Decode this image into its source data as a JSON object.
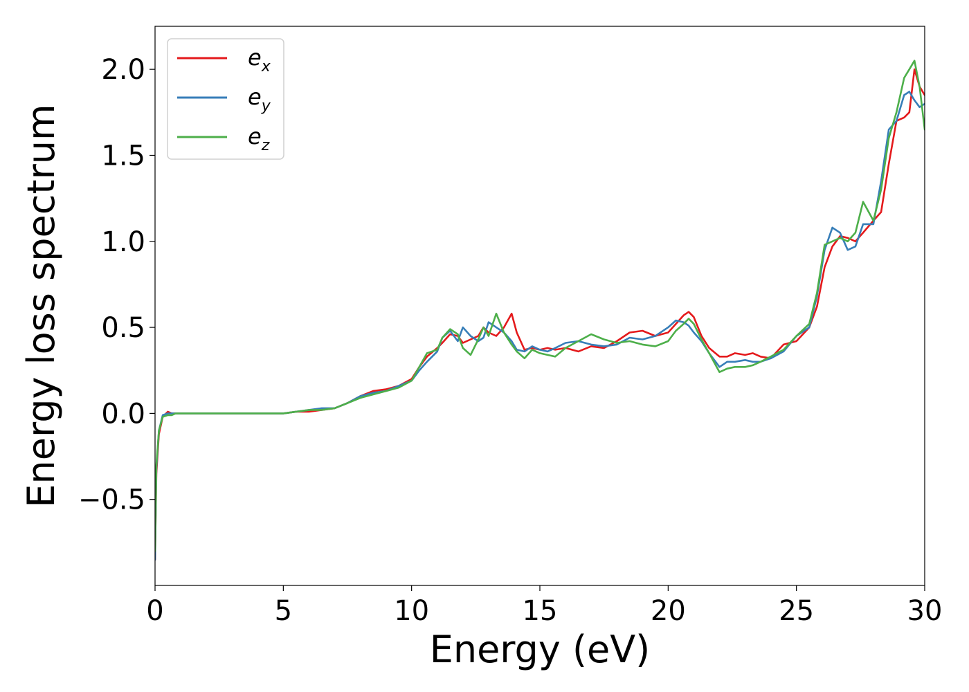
{
  "chart_data": {
    "type": "line",
    "xlabel": "Energy (eV)",
    "ylabel": "Energy loss spectrum",
    "xlim": [
      0,
      30
    ],
    "ylim": [
      -1.0,
      2.25
    ],
    "xticks": [
      0,
      5,
      10,
      15,
      20,
      25,
      30
    ],
    "xtick_labels": [
      "0",
      "5",
      "10",
      "15",
      "20",
      "25",
      "30"
    ],
    "yticks": [
      -0.5,
      0.0,
      0.5,
      1.0,
      1.5,
      2.0
    ],
    "ytick_labels": [
      "−0.5",
      "0.0",
      "0.5",
      "1.0",
      "1.5",
      "2.0"
    ],
    "grid": false,
    "legend_position": "top-left",
    "series": [
      {
        "name": "e_x",
        "legend_base": "e",
        "legend_sub": "x",
        "color": "#e41a1c",
        "x": [
          0.0,
          0.05,
          0.15,
          0.3,
          0.5,
          0.65,
          0.8,
          1.0,
          1.5,
          2.0,
          3.0,
          4.0,
          5.0,
          5.5,
          6.0,
          6.5,
          7.0,
          7.5,
          8.0,
          8.5,
          9.0,
          9.5,
          10.0,
          10.3,
          10.6,
          11.0,
          11.2,
          11.5,
          11.8,
          12.0,
          12.3,
          12.6,
          12.8,
          13.0,
          13.3,
          13.6,
          13.9,
          14.1,
          14.4,
          14.7,
          15.0,
          15.3,
          15.6,
          16.0,
          16.5,
          17.0,
          17.5,
          18.0,
          18.5,
          19.0,
          19.5,
          20.0,
          20.3,
          20.6,
          20.8,
          21.0,
          21.3,
          21.6,
          22.0,
          22.3,
          22.6,
          23.0,
          23.3,
          23.6,
          24.0,
          24.5,
          25.0,
          25.5,
          25.8,
          26.1,
          26.4,
          26.7,
          27.0,
          27.3,
          27.6,
          28.0,
          28.3,
          28.6,
          28.9,
          29.2,
          29.4,
          29.6,
          29.8,
          30.0
        ],
        "y": [
          -0.85,
          -0.35,
          -0.12,
          -0.02,
          0.01,
          0.0,
          0.0,
          0.0,
          0.0,
          0.0,
          0.0,
          0.0,
          0.0,
          0.01,
          0.01,
          0.02,
          0.03,
          0.06,
          0.1,
          0.13,
          0.14,
          0.16,
          0.2,
          0.27,
          0.33,
          0.38,
          0.41,
          0.46,
          0.45,
          0.41,
          0.43,
          0.45,
          0.5,
          0.47,
          0.45,
          0.5,
          0.58,
          0.47,
          0.37,
          0.38,
          0.37,
          0.38,
          0.37,
          0.38,
          0.36,
          0.39,
          0.38,
          0.42,
          0.47,
          0.48,
          0.45,
          0.47,
          0.52,
          0.57,
          0.59,
          0.56,
          0.45,
          0.38,
          0.33,
          0.33,
          0.35,
          0.34,
          0.35,
          0.33,
          0.32,
          0.4,
          0.42,
          0.5,
          0.62,
          0.85,
          0.97,
          1.03,
          1.02,
          1.0,
          1.05,
          1.12,
          1.17,
          1.45,
          1.7,
          1.72,
          1.75,
          2.0,
          1.9,
          1.85
        ]
      },
      {
        "name": "e_y",
        "legend_base": "e",
        "legend_sub": "y",
        "color": "#377eb8",
        "x": [
          0.0,
          0.05,
          0.15,
          0.3,
          0.5,
          0.65,
          0.8,
          1.0,
          1.5,
          2.0,
          3.0,
          4.0,
          5.0,
          5.5,
          6.0,
          6.5,
          7.0,
          7.5,
          8.0,
          8.5,
          9.0,
          9.5,
          10.0,
          10.3,
          10.6,
          11.0,
          11.2,
          11.5,
          11.8,
          12.0,
          12.3,
          12.6,
          12.8,
          13.0,
          13.3,
          13.6,
          13.9,
          14.1,
          14.4,
          14.7,
          15.0,
          15.3,
          15.6,
          16.0,
          16.5,
          17.0,
          17.5,
          18.0,
          18.5,
          19.0,
          19.5,
          20.0,
          20.3,
          20.6,
          20.8,
          21.0,
          21.3,
          21.6,
          22.0,
          22.3,
          22.6,
          23.0,
          23.3,
          23.6,
          24.0,
          24.5,
          25.0,
          25.5,
          25.8,
          26.1,
          26.4,
          26.7,
          27.0,
          27.3,
          27.6,
          28.0,
          28.3,
          28.6,
          28.9,
          29.2,
          29.4,
          29.6,
          29.8,
          30.0
        ],
        "y": [
          -0.85,
          -0.32,
          -0.1,
          -0.01,
          0.0,
          0.0,
          0.0,
          0.0,
          0.0,
          0.0,
          0.0,
          0.0,
          0.0,
          0.01,
          0.02,
          0.03,
          0.03,
          0.06,
          0.1,
          0.12,
          0.13,
          0.16,
          0.19,
          0.25,
          0.3,
          0.36,
          0.44,
          0.48,
          0.42,
          0.5,
          0.45,
          0.42,
          0.44,
          0.53,
          0.5,
          0.47,
          0.42,
          0.37,
          0.36,
          0.39,
          0.37,
          0.36,
          0.38,
          0.41,
          0.42,
          0.4,
          0.39,
          0.4,
          0.44,
          0.43,
          0.45,
          0.5,
          0.54,
          0.53,
          0.51,
          0.47,
          0.42,
          0.35,
          0.27,
          0.3,
          0.3,
          0.31,
          0.3,
          0.3,
          0.32,
          0.36,
          0.45,
          0.5,
          0.68,
          0.95,
          1.08,
          1.05,
          0.95,
          0.97,
          1.1,
          1.1,
          1.35,
          1.65,
          1.7,
          1.85,
          1.87,
          1.82,
          1.78,
          1.8
        ]
      },
      {
        "name": "e_z",
        "legend_base": "e",
        "legend_sub": "z",
        "color": "#4daf4a",
        "x": [
          0.0,
          0.05,
          0.15,
          0.3,
          0.5,
          0.65,
          0.8,
          1.0,
          1.5,
          2.0,
          3.0,
          4.0,
          5.0,
          5.5,
          6.0,
          6.5,
          7.0,
          7.5,
          8.0,
          8.5,
          9.0,
          9.5,
          10.0,
          10.3,
          10.6,
          11.0,
          11.2,
          11.5,
          11.8,
          12.0,
          12.3,
          12.6,
          12.8,
          13.0,
          13.3,
          13.6,
          13.9,
          14.1,
          14.4,
          14.7,
          15.0,
          15.3,
          15.6,
          16.0,
          16.5,
          17.0,
          17.5,
          18.0,
          18.5,
          19.0,
          19.5,
          20.0,
          20.3,
          20.6,
          20.8,
          21.0,
          21.3,
          21.6,
          22.0,
          22.3,
          22.6,
          23.0,
          23.3,
          23.6,
          24.0,
          24.5,
          25.0,
          25.5,
          25.8,
          26.1,
          26.4,
          26.7,
          27.0,
          27.3,
          27.6,
          28.0,
          28.3,
          28.6,
          28.9,
          29.2,
          29.4,
          29.6,
          29.8,
          30.0
        ],
        "y": [
          -0.8,
          -0.3,
          -0.1,
          -0.02,
          -0.01,
          -0.01,
          0.0,
          0.0,
          0.0,
          0.0,
          0.0,
          0.0,
          0.0,
          0.01,
          0.02,
          0.02,
          0.03,
          0.06,
          0.09,
          0.11,
          0.13,
          0.15,
          0.19,
          0.27,
          0.35,
          0.37,
          0.44,
          0.49,
          0.46,
          0.38,
          0.34,
          0.43,
          0.5,
          0.45,
          0.58,
          0.47,
          0.4,
          0.36,
          0.32,
          0.37,
          0.35,
          0.34,
          0.33,
          0.38,
          0.42,
          0.46,
          0.43,
          0.41,
          0.42,
          0.4,
          0.39,
          0.42,
          0.48,
          0.52,
          0.55,
          0.52,
          0.43,
          0.35,
          0.24,
          0.26,
          0.27,
          0.27,
          0.28,
          0.3,
          0.33,
          0.37,
          0.45,
          0.52,
          0.7,
          0.98,
          1.0,
          1.02,
          1.0,
          1.05,
          1.23,
          1.12,
          1.3,
          1.6,
          1.75,
          1.95,
          2.0,
          2.05,
          1.9,
          1.65
        ]
      }
    ]
  }
}
